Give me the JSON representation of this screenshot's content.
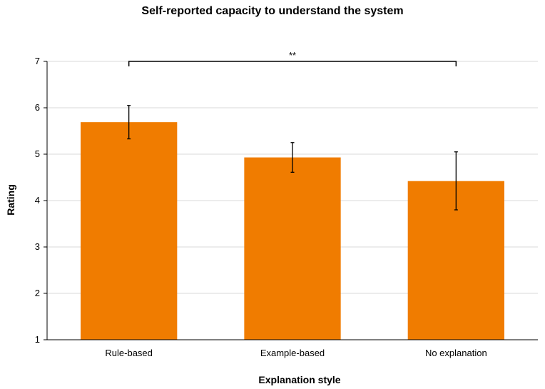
{
  "chart_data": {
    "type": "bar",
    "title": "Self-reported capacity to understand the system",
    "xlabel": "Explanation style",
    "ylabel": "Rating",
    "categories": [
      "Rule-based",
      "Example-based",
      "No explanation"
    ],
    "values": [
      5.69,
      4.93,
      4.42
    ],
    "error_low": [
      5.33,
      4.61,
      3.8
    ],
    "error_high": [
      6.05,
      5.25,
      5.05
    ],
    "ylim": [
      1,
      7
    ],
    "yticks": [
      "1",
      "2",
      "3",
      "4",
      "5",
      "6",
      "7"
    ],
    "grid": true,
    "bar_color": "#F07C00",
    "significance": {
      "label": "**",
      "from_category": "Rule-based",
      "to_category": "No explanation"
    }
  }
}
